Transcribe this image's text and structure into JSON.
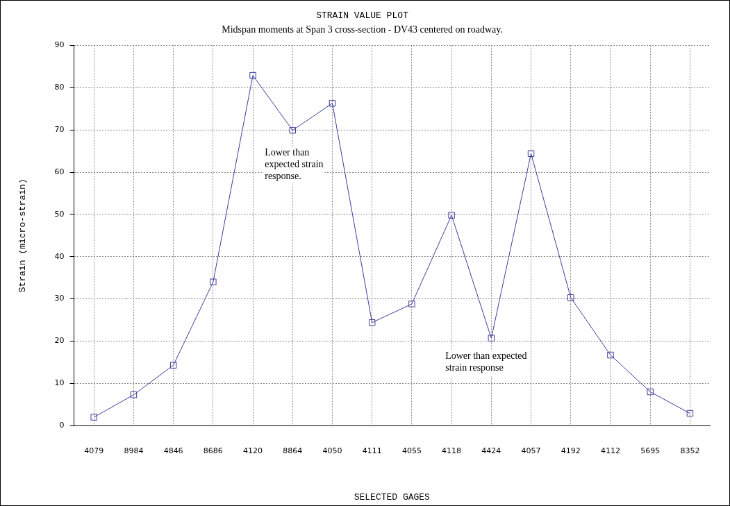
{
  "chart_data": {
    "type": "line",
    "title": "STRAIN VALUE PLOT",
    "subtitle": "Midspan moments at Span 3 cross-section - DV43 centered on roadway.",
    "xlabel": "SELECTED GAGES",
    "ylabel": "Strain (micro-strain)",
    "categories": [
      "4079",
      "8984",
      "4846",
      "8686",
      "4120",
      "8864",
      "4050",
      "4111",
      "4055",
      "4118",
      "4424",
      "4057",
      "4192",
      "4112",
      "5695",
      "8352"
    ],
    "series": [
      {
        "color": "#3c3c9a",
        "values": [
          2,
          7.3,
          14.3,
          34,
          82.9,
          69.9,
          76.3,
          24.4,
          28.8,
          49.8,
          20.7,
          64.4,
          30.3,
          16.7,
          8,
          2.9
        ]
      }
    ],
    "ylim": [
      0,
      90
    ],
    "yticks": [
      0,
      10,
      20,
      30,
      40,
      50,
      60,
      70,
      80,
      90
    ],
    "grid": true,
    "legend": false,
    "marker": "square",
    "line_style": "solid",
    "annotations": [
      "Lower than\nexpected strain\nresponse.",
      "Lower than expected\nstrain response"
    ]
  }
}
